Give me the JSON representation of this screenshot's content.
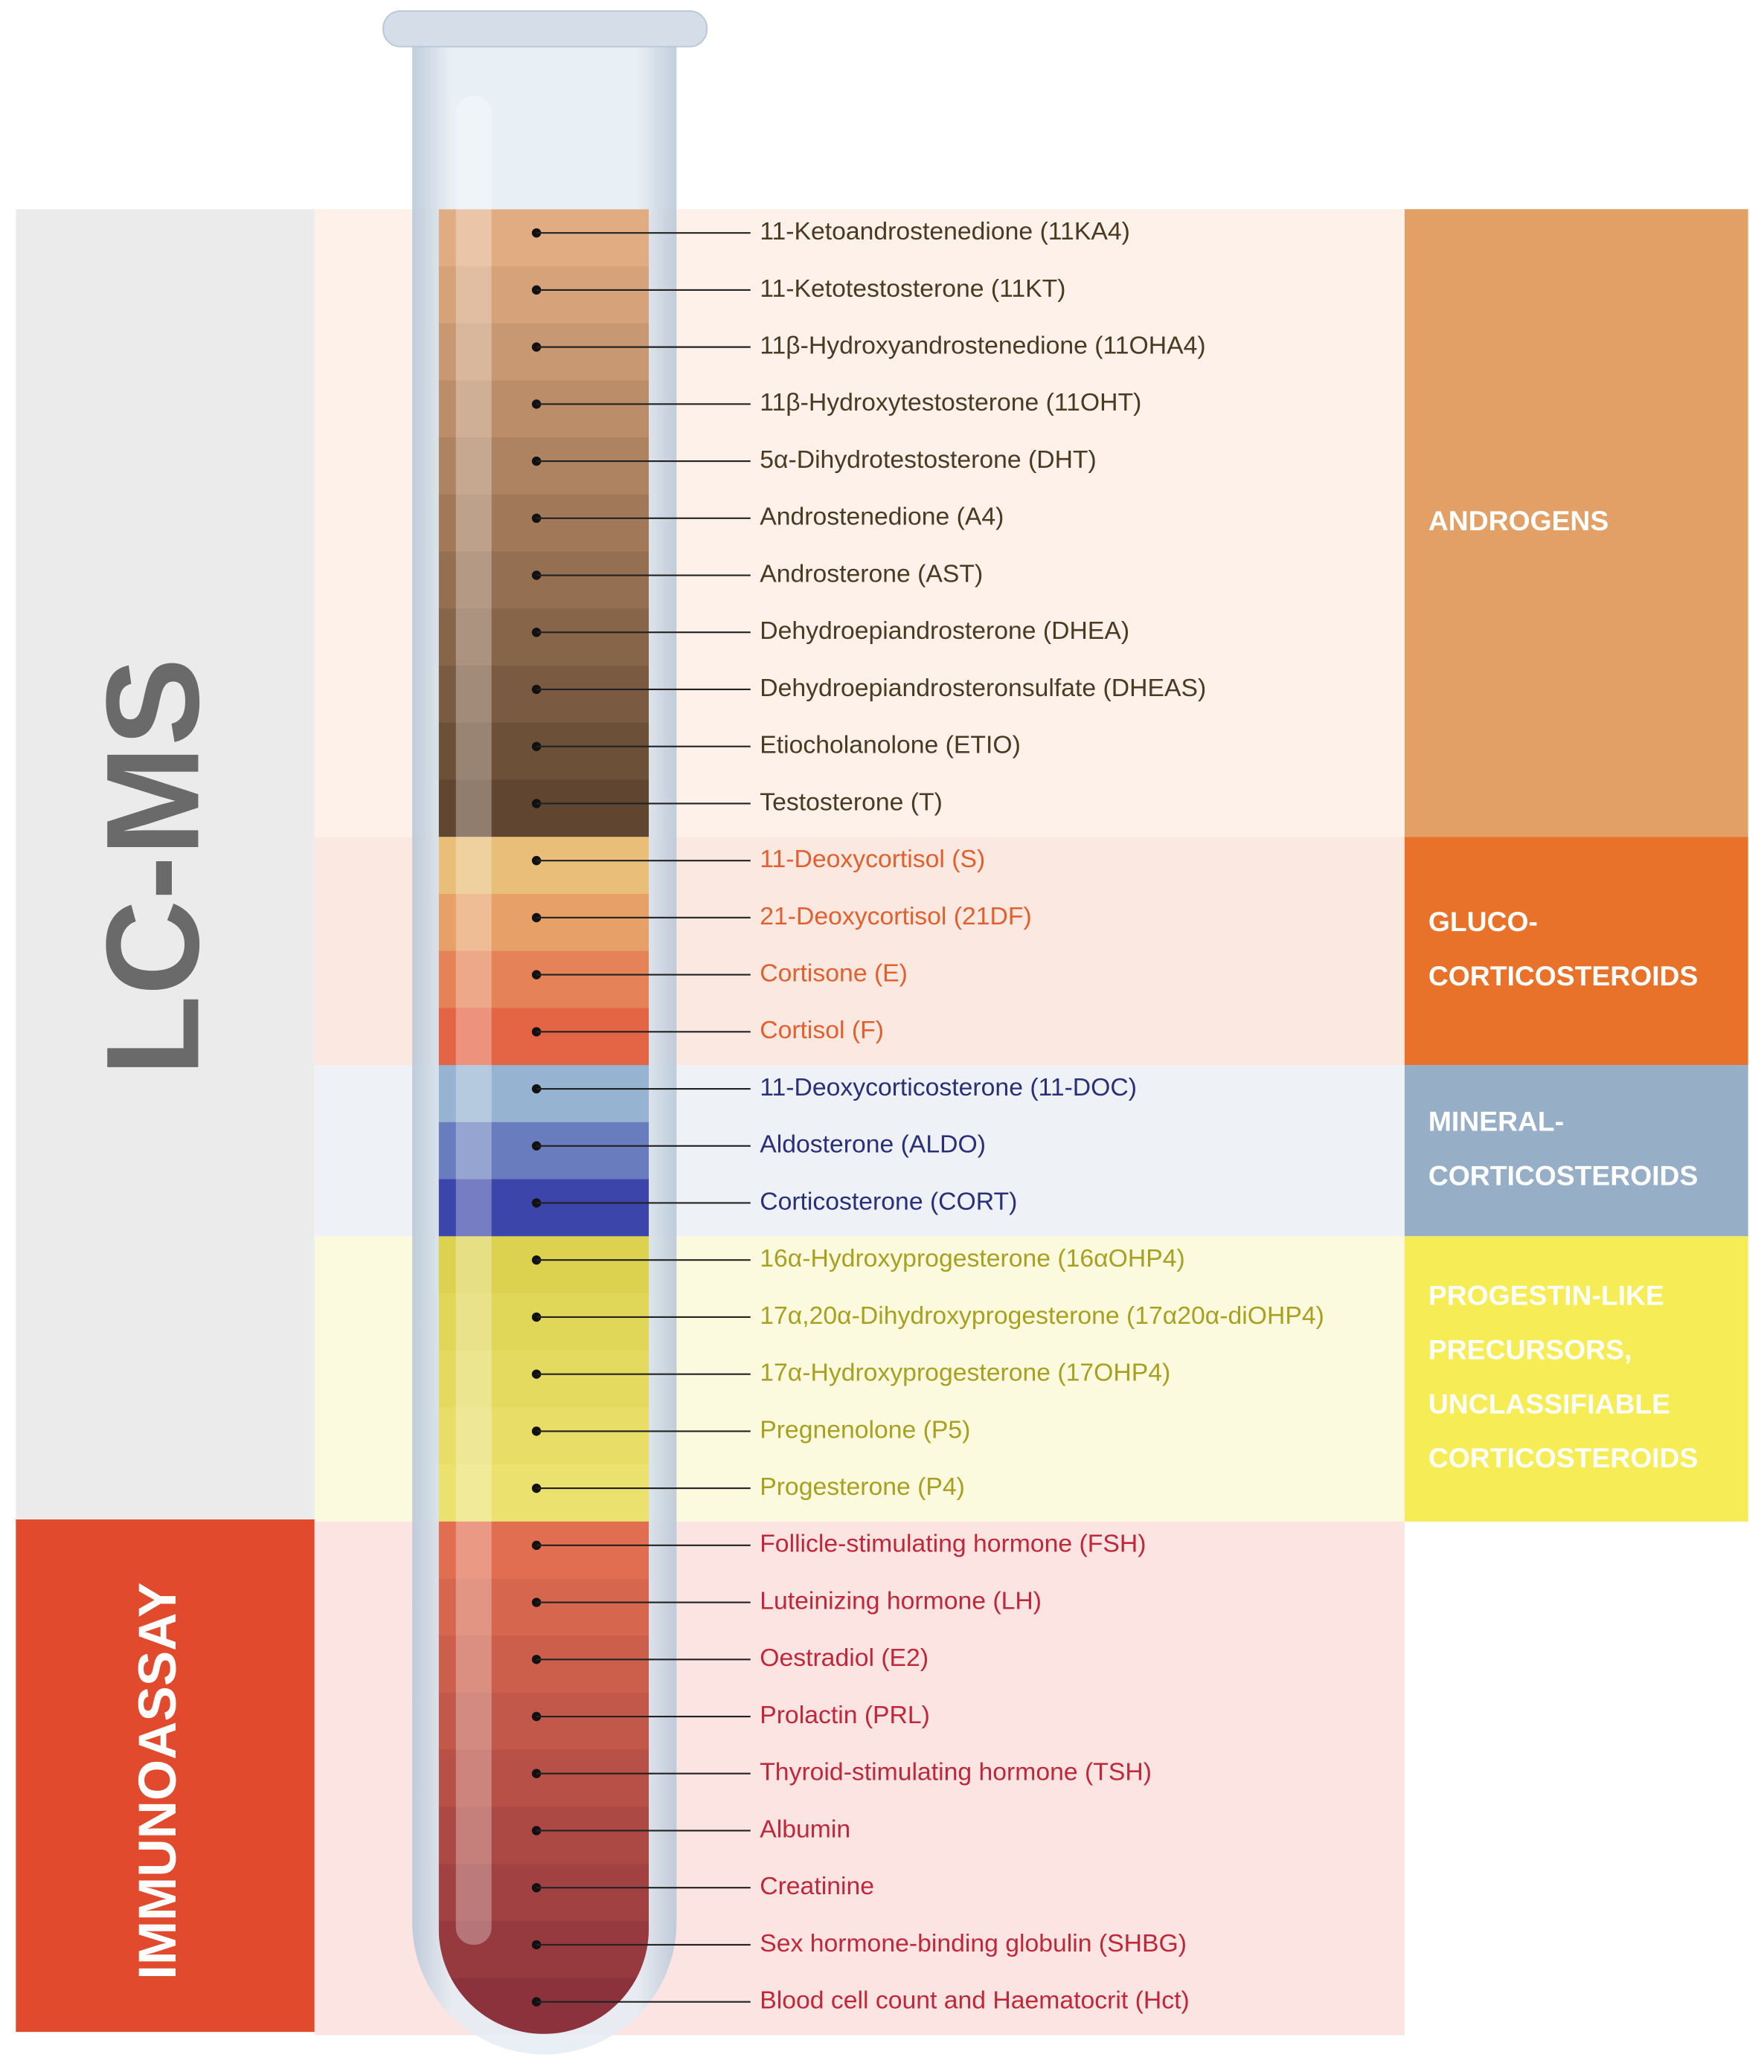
{
  "side_labels": {
    "lcms": "LC-MS",
    "immunoassay": "IMMUNOASSAY"
  },
  "groups": [
    {
      "label": [
        "ANDROGENS"
      ],
      "items": [
        "11-Ketoandrostenedione (11KA4)",
        "11-Ketotestosterone (11KT)",
        "11β-Hydroxyandrostenedione (11OHA4)",
        "11β-Hydroxytestosterone (11OHT)",
        "5α-Dihydrotestosterone (DHT)",
        "Androstenedione (A4)",
        "Androsterone (AST)",
        "Dehydroepiandrosterone (DHEA)",
        "Dehydroepiandrosteronsulfate (DHEAS)",
        "Etiocholanolone (ETIO)",
        "Testosterone (T)"
      ]
    },
    {
      "label": [
        "GLUCO-",
        "CORTICOSTEROIDS"
      ],
      "items": [
        "11-Deoxycortisol (S)",
        "21-Deoxycortisol (21DF)",
        "Cortisone (E)",
        "Cortisol (F)"
      ]
    },
    {
      "label": [
        "MINERAL-",
        "CORTICOSTEROIDS"
      ],
      "items": [
        "11-Deoxycorticosterone  (11-DOC)",
        "Aldosterone (ALDO)",
        "Corticosterone (CORT)"
      ]
    },
    {
      "label": [
        "PROGESTIN-LIKE",
        "PRECURSORS,",
        "UNCLASSIFIABLE",
        "CORTICOSTEROIDS"
      ],
      "items": [
        "16α-Hydroxyprogesterone (16αOHP4)",
        "17α,20α-Dihydroxyprogesterone (17α20α-diOHP4)",
        "17α-Hydroxyprogesterone (17OHP4)",
        "Pregnenolone (P5)",
        "Progesterone (P4)"
      ]
    },
    {
      "items": [
        "Follicle-stimulating hormone (FSH)",
        "Luteinizing hormone (LH)",
        "Oestradiol (E2)",
        "Prolactin (PRL)",
        "Thyroid-stimulating hormone (TSH)",
        "Albumin",
        "Creatinine",
        "Sex hormone-binding globulin (SHBG)",
        "Blood cell count and Haematocrit (Hct)"
      ]
    }
  ]
}
